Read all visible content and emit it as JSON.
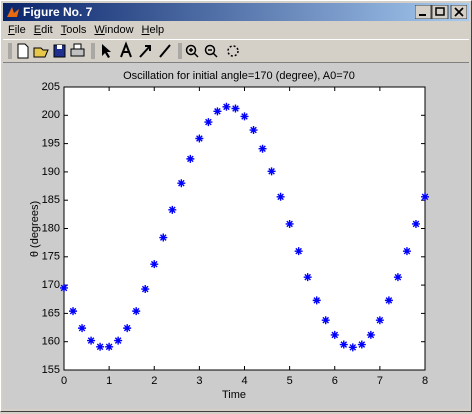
{
  "window": {
    "title": "Figure No. 7",
    "menu": [
      "File",
      "Edit",
      "Tools",
      "Window",
      "Help"
    ]
  },
  "chart_data": {
    "type": "scatter",
    "title": "Oscillation for initial angle=170 (degree), A0=70",
    "x_label": "Time",
    "y_label": "θ (degrees)",
    "marker": "*",
    "xlim": [
      0,
      8
    ],
    "xticks": [
      0,
      1,
      2,
      3,
      4,
      5,
      6,
      7,
      8
    ],
    "ylim": [
      155,
      205
    ],
    "yticks": [
      155,
      160,
      165,
      170,
      175,
      180,
      185,
      190,
      195,
      200,
      205
    ],
    "series": [
      {
        "color": "#0000ff",
        "x": [
          0,
          0.2,
          0.4,
          0.6,
          0.8,
          1.0,
          1.2,
          1.4,
          1.6,
          1.8,
          2.0,
          2.2,
          2.4,
          2.6,
          2.8,
          3.0,
          3.2,
          3.4,
          3.6,
          3.8,
          4.0,
          4.2,
          4.4,
          4.6,
          4.8,
          5.0,
          5.2,
          5.4,
          5.6,
          5.8,
          6.0,
          6.2,
          6.4,
          6.6,
          6.8,
          7.0,
          7.2,
          7.4,
          7.6,
          7.8,
          8.0
        ],
        "values": [
          169.5,
          165.4,
          162.4,
          160.2,
          159.1,
          159.1,
          160.2,
          162.4,
          165.4,
          169.3,
          173.7,
          178.4,
          183.3,
          188.0,
          192.3,
          195.9,
          198.8,
          200.7,
          201.5,
          201.2,
          199.8,
          197.4,
          194.1,
          190.1,
          185.6,
          180.8,
          176.0,
          171.4,
          167.3,
          163.8,
          161.2,
          159.5,
          159.0,
          159.5,
          161.2,
          163.8,
          167.3,
          171.4,
          176.0,
          180.8,
          185.6
        ]
      }
    ]
  }
}
